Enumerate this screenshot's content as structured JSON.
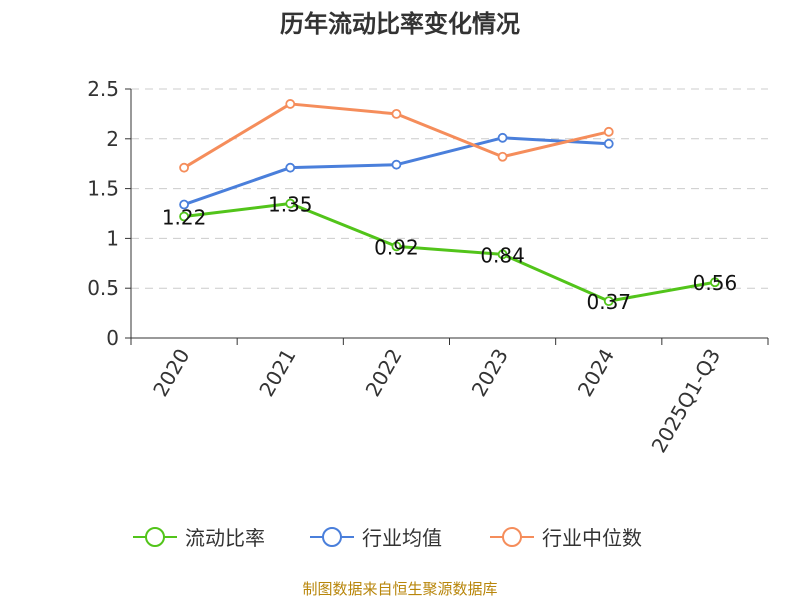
{
  "chart_data": {
    "type": "line",
    "title": "历年流动比率变化情况",
    "categories": [
      "2020",
      "2021",
      "2022",
      "2023",
      "2024",
      "2025Q1-Q3"
    ],
    "ylim": [
      0,
      2.5
    ],
    "yticks": [
      "0",
      "0.5",
      "1",
      "1.5",
      "2",
      "2.5"
    ],
    "grid": true,
    "legend_position": "bottom",
    "series": [
      {
        "name": "流动比率",
        "color": "#52c41a",
        "values": [
          1.22,
          1.35,
          0.92,
          0.84,
          0.37,
          0.56
        ],
        "labels": [
          "1.22",
          "1.35",
          "0.92",
          "0.84",
          "0.37",
          "0.56"
        ]
      },
      {
        "name": "行业均值",
        "color": "#4a7fdb",
        "values": [
          1.34,
          1.71,
          1.74,
          2.01,
          1.95,
          null
        ]
      },
      {
        "name": "行业中位数",
        "color": "#f58d5b",
        "values": [
          1.71,
          2.35,
          2.25,
          1.82,
          2.07,
          null
        ]
      }
    ]
  },
  "source_text": "制图数据来自恒生聚源数据库"
}
